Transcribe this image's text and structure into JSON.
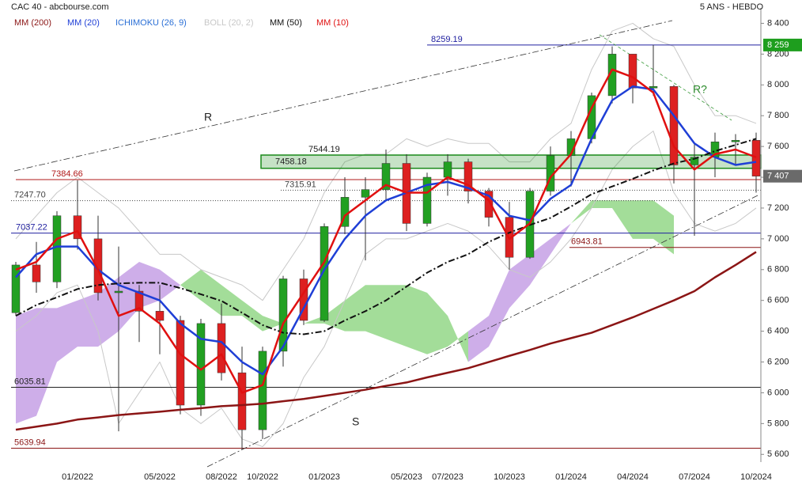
{
  "chart_data": {
    "type": "candlestick",
    "title": "CAC 40 - abcbourse.com",
    "subtitle": "5 ANS - HEBDO",
    "x": [
      "10/2021",
      "11/2021",
      "12/2021",
      "01/2022",
      "02/2022",
      "03/2022",
      "04/2022",
      "05/2022",
      "06/2022",
      "07/2022",
      "08/2022",
      "09/2022",
      "10/2022",
      "11/2022",
      "12/2022",
      "01/2023",
      "02/2023",
      "03/2023",
      "04/2023",
      "05/2023",
      "06/2023",
      "07/2023",
      "08/2023",
      "09/2023",
      "10/2023",
      "11/2023",
      "12/2023",
      "01/2024",
      "02/2024",
      "03/2024",
      "04/2024",
      "05/2024",
      "06/2024",
      "07/2024",
      "08/2024",
      "09/2024",
      "10/2024"
    ],
    "xtick_labels": [
      "01/2022",
      "05/2022",
      "08/2022",
      "10/2022",
      "01/2023",
      "05/2023",
      "07/2023",
      "10/2023",
      "01/2024",
      "04/2024",
      "07/2024",
      "10/2024"
    ],
    "ylim": [
      5550,
      8500
    ],
    "yticks": [
      {
        "value": 5600,
        "label": "5 600"
      },
      {
        "value": 5800,
        "label": "5 800"
      },
      {
        "value": 6000,
        "label": "6 000"
      },
      {
        "value": 6200,
        "label": "6 200"
      },
      {
        "value": 6400,
        "label": "6 400"
      },
      {
        "value": 6600,
        "label": "6 600"
      },
      {
        "value": 6800,
        "label": "6 800"
      },
      {
        "value": 7000,
        "label": "7 000"
      },
      {
        "value": 7200,
        "label": "7 200"
      },
      {
        "value": 7400,
        "label": "7 400"
      },
      {
        "value": 7600,
        "label": "7 600"
      },
      {
        "value": 7800,
        "label": "7 800"
      },
      {
        "value": 8000,
        "label": "8 000"
      },
      {
        "value": 8200,
        "label": "8 200"
      },
      {
        "value": 8400,
        "label": "8 400"
      }
    ],
    "ohlc": {
      "up_color": "#22a022",
      "down_color": "#dd2020",
      "open": [
        6520,
        6830,
        6720,
        7150,
        7000,
        6650,
        6660,
        6530,
        6470,
        5920,
        6450,
        6130,
        5760,
        6270,
        6740,
        6470,
        7080,
        7270,
        7320,
        7490,
        7100,
        7400,
        7500,
        7310,
        7140,
        6880,
        7310,
        7540,
        7650,
        7930,
        8200,
        7980,
        7990,
        7480,
        7530,
        7630,
        7640
      ],
      "high": [
        6850,
        6980,
        7180,
        7380,
        7150,
        6950,
        6700,
        6700,
        6500,
        6480,
        6580,
        6300,
        6300,
        6760,
        6800,
        7100,
        7400,
        7400,
        7580,
        7550,
        7430,
        7550,
        7520,
        7330,
        7240,
        7330,
        7600,
        7700,
        7950,
        8250,
        8200,
        8259,
        8000,
        7620,
        7690,
        7680,
        7690
      ],
      "low": [
        6500,
        6650,
        6680,
        6930,
        6600,
        5750,
        6330,
        6250,
        5860,
        5850,
        6080,
        5630,
        5700,
        6170,
        6440,
        6460,
        7030,
        6860,
        7250,
        7050,
        7080,
        7280,
        7230,
        7080,
        6800,
        6870,
        7280,
        7340,
        7620,
        7880,
        7880,
        7930,
        7360,
        7020,
        7400,
        7480,
        7300
      ],
      "close": [
        6830,
        6720,
        7150,
        7000,
        6650,
        6660,
        6530,
        6470,
        5920,
        6450,
        6130,
        5760,
        6270,
        6740,
        6470,
        7080,
        7270,
        7320,
        7490,
        7100,
        7400,
        7500,
        7310,
        7140,
        6880,
        7310,
        7540,
        7650,
        7930,
        8200,
        7980,
        7990,
        7480,
        7530,
        7630,
        7640,
        7407
      ]
    },
    "series": [
      {
        "name": "MM (200)",
        "color": "#8b1515",
        "values": [
          5760,
          5780,
          5800,
          5826,
          5840,
          5855,
          5866,
          5877,
          5890,
          5900,
          5913,
          5920,
          5929,
          5945,
          5960,
          5980,
          6000,
          6020,
          6045,
          6067,
          6100,
          6130,
          6160,
          6200,
          6240,
          6278,
          6320,
          6355,
          6390,
          6440,
          6490,
          6545,
          6600,
          6660,
          6750,
          6830,
          6915
        ]
      },
      {
        "name": "MM (20)",
        "color": "#1f3fd6",
        "values": [
          6750,
          6900,
          6950,
          6950,
          6800,
          6700,
          6650,
          6600,
          6450,
          6350,
          6330,
          6200,
          6120,
          6300,
          6550,
          6800,
          7000,
          7150,
          7250,
          7300,
          7350,
          7370,
          7330,
          7280,
          7150,
          7120,
          7260,
          7350,
          7650,
          7900,
          7990,
          7970,
          7800,
          7620,
          7530,
          7480,
          7500
        ]
      },
      {
        "name": "ICHIMOKU (26, 9)",
        "color": "#2a6fd6",
        "bull_color": "#7ccf6e",
        "bear_color": "#b98be0",
        "span_a": [
          5800,
          5850,
          6200,
          6300,
          6300,
          6400,
          6550,
          6600,
          6700,
          6800,
          6700,
          6600,
          6500,
          6450,
          6450,
          6500,
          6600,
          6700,
          6700,
          6700,
          6650,
          6500,
          6200,
          6300,
          6550,
          6700,
          6900,
          7100,
          7250,
          7250,
          7250,
          7250,
          7150,
          null,
          null,
          null,
          null
        ],
        "span_b": [
          6500,
          6550,
          6550,
          6600,
          6650,
          6750,
          6850,
          6800,
          6700,
          6600,
          6500,
          6500,
          6400,
          6450,
          6450,
          6450,
          6400,
          6400,
          6350,
          6300,
          6250,
          6300,
          6400,
          6500,
          6800,
          6900,
          7000,
          7100,
          7200,
          7200,
          7000,
          7000,
          6900,
          null,
          null,
          null,
          null
        ]
      },
      {
        "name": "BOLL (20, 2)",
        "color": "#c8c8c8",
        "upper": [
          7000,
          7150,
          7300,
          7400,
          7300,
          7200,
          7050,
          6900,
          6900,
          6800,
          6750,
          6700,
          6600,
          6800,
          7000,
          7300,
          7500,
          7550,
          7550,
          7650,
          7600,
          7650,
          7620,
          7620,
          7500,
          7500,
          7650,
          7750,
          8100,
          8350,
          8400,
          8300,
          8250,
          8000,
          7800,
          7800,
          7750
        ],
        "lower": [
          6400,
          6500,
          6650,
          6700,
          6400,
          5800,
          6000,
          6200,
          5900,
          5800,
          5900,
          5700,
          5650,
          5800,
          6100,
          6300,
          6600,
          6900,
          7000,
          7000,
          7050,
          7100,
          7050,
          6950,
          6800,
          6750,
          6850,
          7000,
          7200,
          7450,
          7600,
          7700,
          7300,
          7100,
          7050,
          7100,
          7200
        ]
      },
      {
        "name": "MM (50)",
        "color": "#111111",
        "line_style": "dashdot",
        "values": [
          6500,
          6570,
          6620,
          6674,
          6700,
          6710,
          6715,
          6715,
          6680,
          6640,
          6597,
          6520,
          6440,
          6390,
          6380,
          6400,
          6470,
          6530,
          6600,
          6690,
          6780,
          6850,
          6900,
          6980,
          7040,
          7090,
          7136,
          7210,
          7290,
          7340,
          7390,
          7444,
          7490,
          7520,
          7570,
          7610,
          7650
        ]
      },
      {
        "name": "MM (10)",
        "color": "#e01010",
        "values": [
          6800,
          6850,
          7000,
          7050,
          6800,
          6500,
          6550,
          6450,
          6250,
          6150,
          6250,
          6000,
          6050,
          6450,
          6650,
          6850,
          7150,
          7250,
          7350,
          7300,
          7300,
          7400,
          7350,
          7250,
          7000,
          7100,
          7400,
          7550,
          7850,
          8100,
          8050,
          7950,
          7600,
          7450,
          7550,
          7580,
          7530
        ]
      }
    ],
    "levels": [
      {
        "value": 8259.19,
        "label": "8259.19",
        "color": "#2020a0"
      },
      {
        "value": 7384.66,
        "label": "7384.66",
        "color": "#b01818"
      },
      {
        "value": 7315.91,
        "label": "7315.91",
        "color": "#444444",
        "line_style": "dotted"
      },
      {
        "value": 7247.7,
        "label": "7247.70",
        "color": "#444444",
        "line_style": "dotted"
      },
      {
        "value": 7037.22,
        "label": "7037.22",
        "color": "#2020a0"
      },
      {
        "value": 6943.81,
        "label": "6943.81",
        "color": "#8b1515"
      },
      {
        "value": 6035.81,
        "label": "6035.81",
        "color": "#222222"
      },
      {
        "value": 5639.94,
        "label": "5639.94",
        "color": "#8b1515"
      }
    ],
    "zone": {
      "top": 7544.19,
      "bottom": 7458.18,
      "top_label": "7544.19",
      "bottom_label": "7458.18",
      "color": "#1a8a1a"
    },
    "price_tags": [
      {
        "value": 8259,
        "label": "8 259",
        "color": "#1e9e1e"
      },
      {
        "value": 7407,
        "label": "7 407",
        "color": "#6a6a6a"
      }
    ],
    "annotations": [
      "R",
      "S",
      "R?"
    ]
  }
}
